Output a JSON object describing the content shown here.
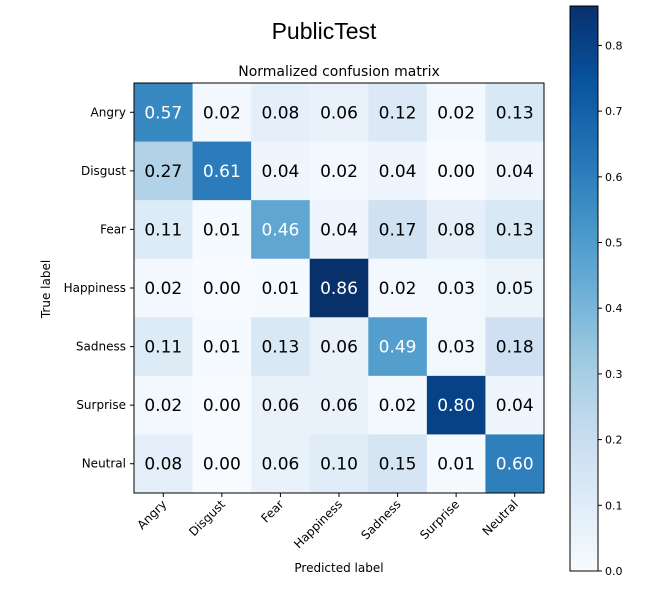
{
  "page_title": "PublicTest",
  "chart_data": {
    "type": "heatmap",
    "title": "Normalized confusion matrix",
    "xlabel": "Predicted label",
    "ylabel": "True label",
    "x_categories": [
      "Angry",
      "Disgust",
      "Fear",
      "Happiness",
      "Sadness",
      "Surprise",
      "Neutral"
    ],
    "y_categories": [
      "Angry",
      "Disgust",
      "Fear",
      "Happiness",
      "Sadness",
      "Surprise",
      "Neutral"
    ],
    "values": [
      [
        0.57,
        0.02,
        0.08,
        0.06,
        0.12,
        0.02,
        0.13
      ],
      [
        0.27,
        0.61,
        0.04,
        0.02,
        0.04,
        0.0,
        0.04
      ],
      [
        0.11,
        0.01,
        0.46,
        0.04,
        0.17,
        0.08,
        0.13
      ],
      [
        0.02,
        0.0,
        0.01,
        0.86,
        0.02,
        0.03,
        0.05
      ],
      [
        0.11,
        0.01,
        0.13,
        0.06,
        0.49,
        0.03,
        0.18
      ],
      [
        0.02,
        0.0,
        0.06,
        0.06,
        0.02,
        0.8,
        0.04
      ],
      [
        0.08,
        0.0,
        0.06,
        0.1,
        0.15,
        0.01,
        0.6
      ]
    ],
    "colormap": "Blues",
    "color_range": [
      0.0,
      0.86
    ],
    "colorbar_ticks": [
      "0.0",
      "0.1",
      "0.2",
      "0.3",
      "0.4",
      "0.5",
      "0.6",
      "0.7",
      "0.8"
    ],
    "grid": false
  }
}
